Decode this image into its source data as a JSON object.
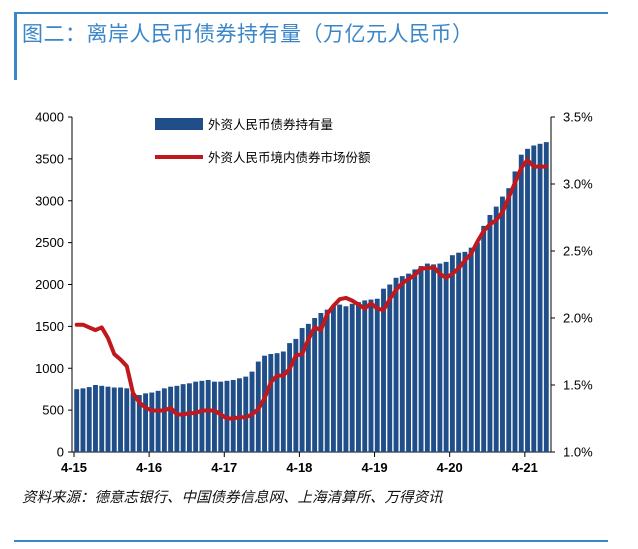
{
  "title": "图二：离岸人民币债券持有量（万亿元人民币）",
  "source": "资料来源：德意志银行、中国债券信息网、上海清算所、万得资讯",
  "colors": {
    "bar": "#1f4e89",
    "line": "#c0181c",
    "accent": "#3a86c8"
  },
  "chart_data": {
    "type": "bar",
    "title": "",
    "xlabel": "",
    "ylabel": "",
    "ylim": [
      0,
      4000
    ],
    "yticks": [
      "4000",
      "3500",
      "3000",
      "2500",
      "2000",
      "1500",
      "1000",
      "500",
      "0"
    ],
    "y2lim": [
      1.0,
      3.5
    ],
    "y2ticks": [
      "3.5%",
      "3.0%",
      "2.5%",
      "2.0%",
      "1.5%",
      "1.0%"
    ],
    "xtick_labels": [
      {
        "label": "4-15",
        "index": 0
      },
      {
        "label": "4-16",
        "index": 12
      },
      {
        "label": "4-17",
        "index": 24
      },
      {
        "label": "4-18",
        "index": 36
      },
      {
        "label": "4-19",
        "index": 48
      },
      {
        "label": "4-20",
        "index": 60
      },
      {
        "label": "4-21",
        "index": 72
      }
    ],
    "legend": {
      "position": "top-left"
    },
    "series": [
      {
        "name": "外资人民币债券持有量",
        "type": "bar",
        "axis": "left",
        "values": [
          750,
          760,
          775,
          800,
          790,
          780,
          770,
          770,
          760,
          700,
          680,
          700,
          710,
          730,
          760,
          780,
          790,
          810,
          820,
          840,
          850,
          860,
          840,
          840,
          850,
          860,
          880,
          900,
          960,
          1080,
          1150,
          1170,
          1180,
          1200,
          1300,
          1350,
          1480,
          1530,
          1600,
          1660,
          1700,
          1750,
          1760,
          1740,
          1770,
          1790,
          1810,
          1820,
          1830,
          1950,
          2000,
          2080,
          2100,
          2130,
          2180,
          2220,
          2250,
          2240,
          2250,
          2270,
          2350,
          2380,
          2390,
          2440,
          2500,
          2700,
          2830,
          2930,
          3050,
          3150,
          3350,
          3550,
          3620,
          3660,
          3680,
          3700
        ]
      },
      {
        "name": "外资人民币境内债券市场份额",
        "type": "line",
        "axis": "right",
        "values": [
          1.95,
          1.95,
          1.93,
          1.91,
          1.93,
          1.85,
          1.73,
          1.69,
          1.64,
          1.44,
          1.37,
          1.33,
          1.31,
          1.31,
          1.31,
          1.33,
          1.28,
          1.28,
          1.29,
          1.29,
          1.31,
          1.31,
          1.31,
          1.28,
          1.25,
          1.25,
          1.26,
          1.26,
          1.28,
          1.32,
          1.4,
          1.52,
          1.57,
          1.57,
          1.62,
          1.72,
          1.73,
          1.84,
          1.93,
          1.91,
          2.03,
          2.09,
          2.14,
          2.15,
          2.13,
          2.1,
          2.07,
          2.11,
          2.07,
          2.06,
          2.14,
          2.21,
          2.26,
          2.29,
          2.32,
          2.37,
          2.37,
          2.38,
          2.33,
          2.3,
          2.33,
          2.37,
          2.43,
          2.48,
          2.57,
          2.65,
          2.7,
          2.73,
          2.79,
          2.9,
          3.01,
          3.12,
          3.18,
          3.13,
          3.13,
          3.13
        ]
      }
    ]
  }
}
